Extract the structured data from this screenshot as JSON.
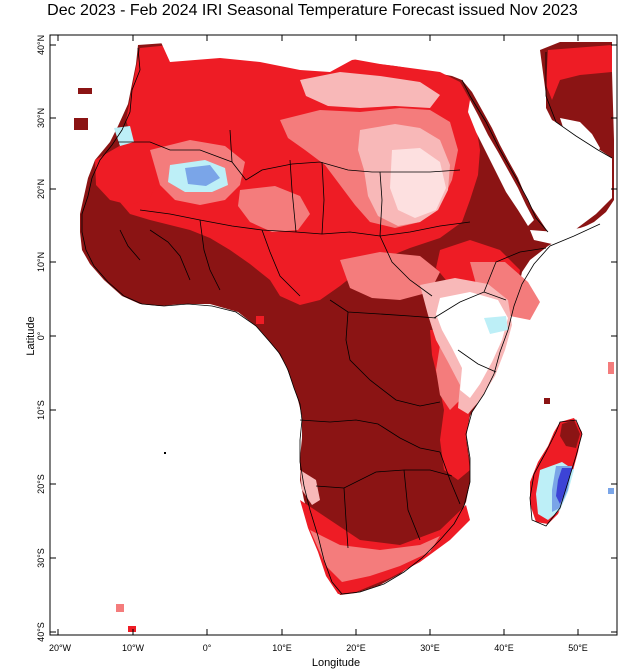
{
  "title": "Dec 2023 - Feb 2024 IRI Seasonal Temperature Forecast issued Nov 2023",
  "map": {
    "x_axis_label": "Longitude",
    "y_axis_label": "Latitude",
    "x_ticks": [
      "20°W",
      "10°W",
      "0°",
      "10°E",
      "20°E",
      "30°E",
      "40°E",
      "50°E"
    ],
    "y_ticks": [
      "40°N",
      "30°N",
      "20°N",
      "10°N",
      "0°",
      "10°S",
      "20°S",
      "30°S",
      "40°S"
    ],
    "region": "Africa",
    "colors": {
      "dark_warm": "#8b1414",
      "warm": "#ee1c25",
      "moderate_warm": "#f47c7c",
      "light_warm": "#f8b8b8",
      "very_light_warm": "#fde0e0",
      "light_cool": "#bdeff7",
      "cool": "#7aa5e8",
      "strong_cool": "#3c43d6"
    }
  }
}
